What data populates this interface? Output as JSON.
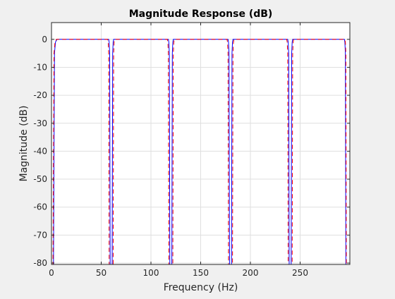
{
  "chart_data": {
    "type": "line",
    "title": "Magnitude Response (dB)",
    "xlabel": "Frequency (Hz)",
    "ylabel": "Magnitude (dB)",
    "xlim": [
      0,
      300
    ],
    "ylim": [
      -80.5,
      6
    ],
    "xticks": [
      0,
      50,
      100,
      150,
      200,
      250
    ],
    "yticks": [
      0,
      -10,
      -20,
      -30,
      -40,
      -50,
      -60,
      -70,
      -80
    ],
    "grid": true,
    "legend": "none",
    "series": [
      {
        "color": "#0000ff",
        "style": "solid",
        "x": [
          0,
          2.0,
          3.0,
          4.0,
          5.5,
          57.5,
          58.0,
          58.5,
          59.0,
          61.0,
          61.5,
          62.0,
          62.5,
          117.5,
          118.0,
          118.5,
          119.0,
          121.0,
          121.5,
          122.0,
          122.5,
          177.5,
          178.0,
          178.5,
          179.0,
          181.0,
          181.5,
          182.0,
          182.5,
          237.5,
          238.0,
          238.5,
          239.0,
          241.0,
          241.5,
          242.0,
          242.5,
          294.5,
          295.0,
          295.5,
          296.0,
          300
        ],
        "y": [
          -80.5,
          -80.5,
          -5,
          -1,
          0,
          0,
          -1,
          -5,
          -80.5,
          -80.5,
          -5,
          -1,
          0,
          0,
          -1,
          -5,
          -80.5,
          -80.5,
          -5,
          -1,
          0,
          0,
          -1,
          -5,
          -80.5,
          -80.5,
          -5,
          -1,
          0,
          0,
          -1,
          -5,
          -80.5,
          -80.5,
          -5,
          -1,
          0,
          0,
          -1,
          -5,
          -80.5,
          -80.5
        ]
      },
      {
        "color": "#ff0000",
        "style": "dashed",
        "x": [
          0,
          1.5,
          2.5,
          3.5,
          5.0,
          56.5,
          57.0,
          57.5,
          58.0,
          62.0,
          62.5,
          63.0,
          63.5,
          116.5,
          117.0,
          117.5,
          118.0,
          122.0,
          122.5,
          123.0,
          123.5,
          176.5,
          177.0,
          177.5,
          178.0,
          182.0,
          182.5,
          183.0,
          183.5,
          236.5,
          237.0,
          237.5,
          238.0,
          242.0,
          242.5,
          243.0,
          243.5,
          295.0,
          295.5,
          296.0,
          296.5,
          300
        ],
        "y": [
          -80.5,
          -80.5,
          -5,
          -1,
          0,
          0,
          -1,
          -5,
          -80.5,
          -80.5,
          -5,
          -1,
          0,
          0,
          -1,
          -5,
          -80.5,
          -80.5,
          -5,
          -1,
          0,
          0,
          -1,
          -5,
          -80.5,
          -80.5,
          -5,
          -1,
          0,
          0,
          -1,
          -5,
          -80.5,
          -80.5,
          -5,
          -1,
          0,
          0,
          -1,
          -5,
          -80.5,
          -80.5
        ]
      }
    ]
  }
}
